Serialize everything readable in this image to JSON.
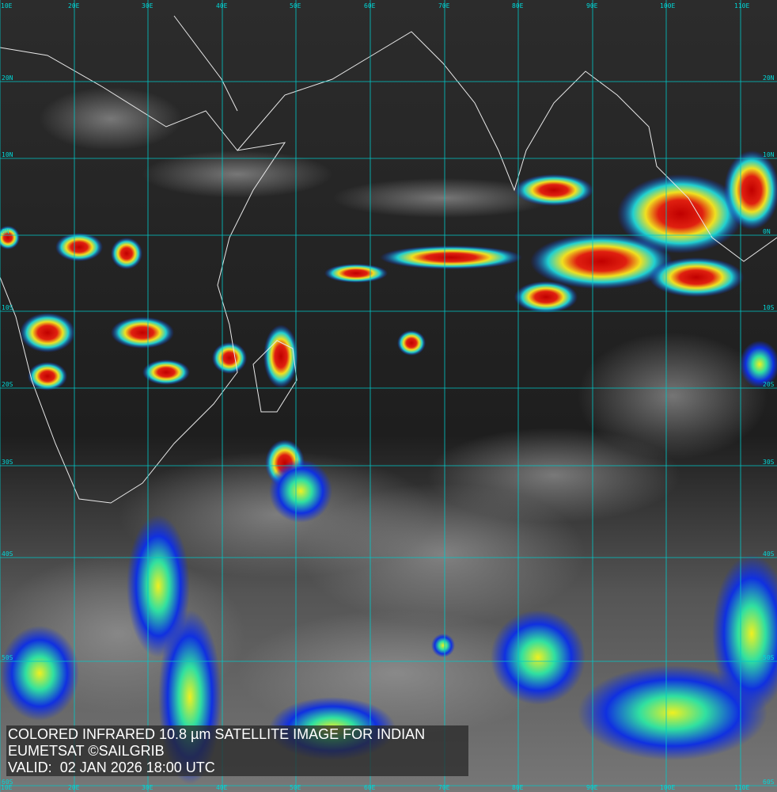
{
  "caption": {
    "line1": "COLORED INFRARED 10.8 µm SATELLITE IMAGE FOR INDIAN",
    "line2": "EUMETSAT ©SAILGRIB",
    "line3": "VALID:  02 JAN 2026 18:00 UTC"
  },
  "grid": {
    "longitudes": [
      "10E",
      "20E",
      "30E",
      "40E",
      "50E",
      "60E",
      "70E",
      "80E",
      "90E",
      "100E",
      "110E"
    ],
    "latitudes": [
      "20N",
      "10N",
      "0N",
      "10S",
      "20S",
      "30S",
      "40S",
      "50S",
      "60S"
    ],
    "color": "#00c8c8"
  },
  "colors": {
    "ocean_dark": "#1c1c1c",
    "cloud_gray": "#8a8a8a",
    "cold_blue": "#1030e0",
    "cyan": "#30e0e0",
    "yellow": "#f0f020",
    "red": "#d81010",
    "coastline": "#e8e8e8"
  }
}
